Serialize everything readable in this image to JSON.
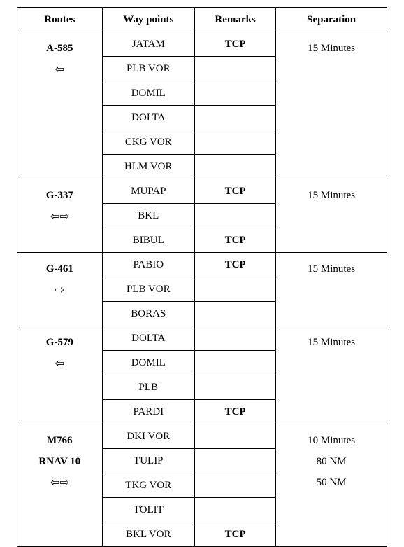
{
  "headers": {
    "routes": "Routes",
    "waypoints": "Way points",
    "remarks": "Remarks",
    "separation": "Separation"
  },
  "groups": [
    {
      "route_lines": [
        "A-585",
        "⇦"
      ],
      "separation": "15 Minutes",
      "rows": [
        {
          "wp": "JATAM",
          "rem": "TCP"
        },
        {
          "wp": "PLB VOR",
          "rem": ""
        },
        {
          "wp": "DOMIL",
          "rem": ""
        },
        {
          "wp": "DOLTA",
          "rem": ""
        },
        {
          "wp": "CKG VOR",
          "rem": ""
        },
        {
          "wp": "HLM VOR",
          "rem": ""
        }
      ]
    },
    {
      "route_lines": [
        "G-337",
        "⇦⇨"
      ],
      "separation": "15 Minutes",
      "rows": [
        {
          "wp": "MUPAP",
          "rem": "TCP"
        },
        {
          "wp": "BKL",
          "rem": ""
        },
        {
          "wp": "BIBUL",
          "rem": "TCP"
        }
      ]
    },
    {
      "route_lines": [
        "G-461",
        "⇨"
      ],
      "separation": "15 Minutes",
      "rows": [
        {
          "wp": "PABIO",
          "rem": "TCP"
        },
        {
          "wp": "PLB VOR",
          "rem": ""
        },
        {
          "wp": "BORAS",
          "rem": ""
        }
      ]
    },
    {
      "route_lines": [
        "G-579",
        "⇦"
      ],
      "separation": "15 Minutes",
      "rows": [
        {
          "wp": "DOLTA",
          "rem": ""
        },
        {
          "wp": "DOMIL",
          "rem": ""
        },
        {
          "wp": "PLB",
          "rem": ""
        },
        {
          "wp": "PARDI",
          "rem": "TCP"
        }
      ]
    },
    {
      "route_lines": [
        "M766",
        "RNAV 10",
        "⇦⇨"
      ],
      "separation_lines": [
        "10 Minutes",
        "80 NM",
        "50 NM"
      ],
      "rows": [
        {
          "wp": "DKI VOR",
          "rem": ""
        },
        {
          "wp": "TULIP",
          "rem": ""
        },
        {
          "wp": "TKG VOR",
          "rem": ""
        },
        {
          "wp": "TOLIT",
          "rem": ""
        },
        {
          "wp": "BKL VOR",
          "rem": "TCP"
        }
      ]
    }
  ]
}
